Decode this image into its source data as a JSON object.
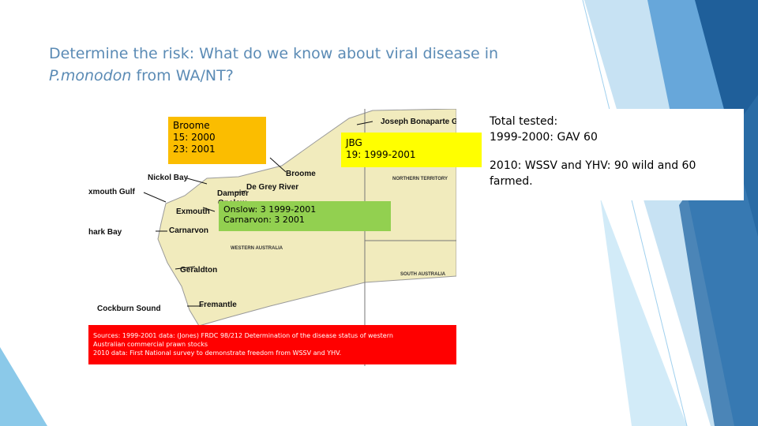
{
  "title": {
    "line1": "Determine the risk: What do we know about viral disease in",
    "italic": "P.monodon",
    "rest": "from WA/NT?"
  },
  "map": {
    "labels": [
      "Joseph Bonaparte G",
      "Broome",
      "Nickol Bay",
      "xmouth Gulf",
      "De Grey River",
      "Dampier",
      "Onslow",
      "Exmouth",
      "hark Bay",
      "Carnarvon",
      "Geraldton",
      "Cockburn Sound",
      "Fremantle"
    ],
    "regions": [
      "NORTHERN TERRITORY",
      "WESTERN AUSTRALIA",
      "SOUTH AUSTRALIA"
    ]
  },
  "boxes": {
    "broome": [
      "Broome",
      "15:  2000",
      "23:  2001"
    ],
    "jbg": [
      "JBG",
      "19:  1999-2001"
    ],
    "onslow": [
      "Onslow:  3  1999-2001",
      "Carnarvon: 3  2001"
    ]
  },
  "sources": [
    "Sources: 1999-2001 data:  (Jones) FRDC 98/212 Determination of the disease status of western",
    "Australian commercial prawn stocks",
    "2010 data: First National survey to demonstrate freedom from WSSV and YHV."
  ],
  "summary": [
    "Total tested:",
    "1999-2000: GAV 60",
    "2010: WSSV and YHV: 90 wild and 60 farmed."
  ]
}
